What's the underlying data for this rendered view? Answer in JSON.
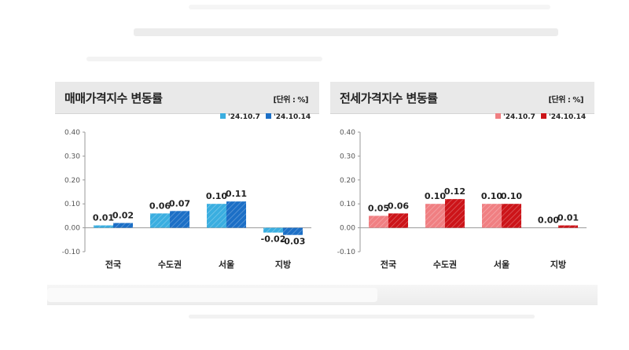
{
  "chart_data": [
    {
      "type": "bar",
      "title": "매매가격지수 변동률",
      "unit_label": "[단위 : %]",
      "categories": [
        "전국",
        "수도권",
        "서울",
        "지방"
      ],
      "series": [
        {
          "name": "'24.10.7",
          "values": [
            0.01,
            0.06,
            0.1,
            -0.02
          ],
          "labels": [
            "0.01",
            "0.06",
            "0.10",
            "-0.02"
          ]
        },
        {
          "name": "'24.10.14",
          "values": [
            0.02,
            0.07,
            0.11,
            -0.03
          ],
          "labels": [
            "0.02",
            "0.07",
            "0.11",
            "-0.03"
          ]
        }
      ],
      "ylim": [
        -0.1,
        0.4
      ],
      "yticks": [
        "0.40",
        "0.30",
        "0.20",
        "0.10",
        "0.00",
        "-0.10"
      ],
      "ytick_values": [
        0.4,
        0.3,
        0.2,
        0.1,
        0.0,
        -0.1
      ],
      "grid": false,
      "legend_position": "top-right",
      "colors": {
        "primary": "#3aaee0",
        "secondary": "#1c6fc6"
      }
    },
    {
      "type": "bar",
      "title": "전세가격지수 변동률",
      "unit_label": "[단위 : %]",
      "categories": [
        "전국",
        "수도권",
        "서울",
        "지방"
      ],
      "series": [
        {
          "name": "'24.10.7",
          "values": [
            0.05,
            0.1,
            0.1,
            0.0
          ],
          "labels": [
            "0.05",
            "0.10",
            "0.10",
            "0.00"
          ]
        },
        {
          "name": "'24.10.14",
          "values": [
            0.06,
            0.12,
            0.1,
            0.01
          ],
          "labels": [
            "0.06",
            "0.12",
            "0.10",
            "0.01"
          ]
        }
      ],
      "ylim": [
        -0.1,
        0.4
      ],
      "yticks": [
        "0.40",
        "0.30",
        "0.20",
        "0.10",
        "0.00",
        "-0.10"
      ],
      "ytick_values": [
        0.4,
        0.3,
        0.2,
        0.1,
        0.0,
        -0.1
      ],
      "grid": false,
      "legend_position": "top-right",
      "colors": {
        "primary": "#f07f82",
        "secondary": "#cc1419"
      }
    }
  ]
}
